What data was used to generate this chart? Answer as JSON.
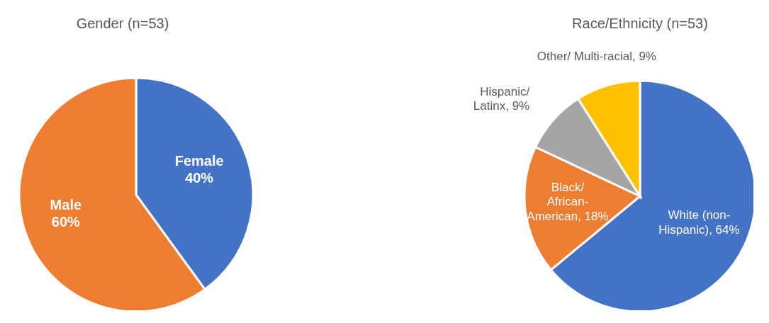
{
  "chart_data": [
    {
      "type": "pie",
      "title": "Gender (n=53)",
      "categories": [
        "Female",
        "Male"
      ],
      "values": [
        40,
        60
      ],
      "colors": [
        "#4472c4",
        "#ed7d31"
      ],
      "value_labels": [
        "40%",
        "60%"
      ],
      "legend": false
    },
    {
      "type": "pie",
      "title": "Race/Ethnicity (n=53)",
      "categories": [
        "White (non-Hispanic)",
        "Black/ African-American",
        "Hispanic/ Latinx",
        "Other/ Multi-racial"
      ],
      "values": [
        64,
        18,
        9,
        9
      ],
      "colors": [
        "#4472c4",
        "#ed7d31",
        "#a5a5a5",
        "#ffc000"
      ],
      "value_labels": [
        ", 64%",
        ", 18%",
        ", 9%",
        ", 9%"
      ],
      "legend": false
    }
  ]
}
